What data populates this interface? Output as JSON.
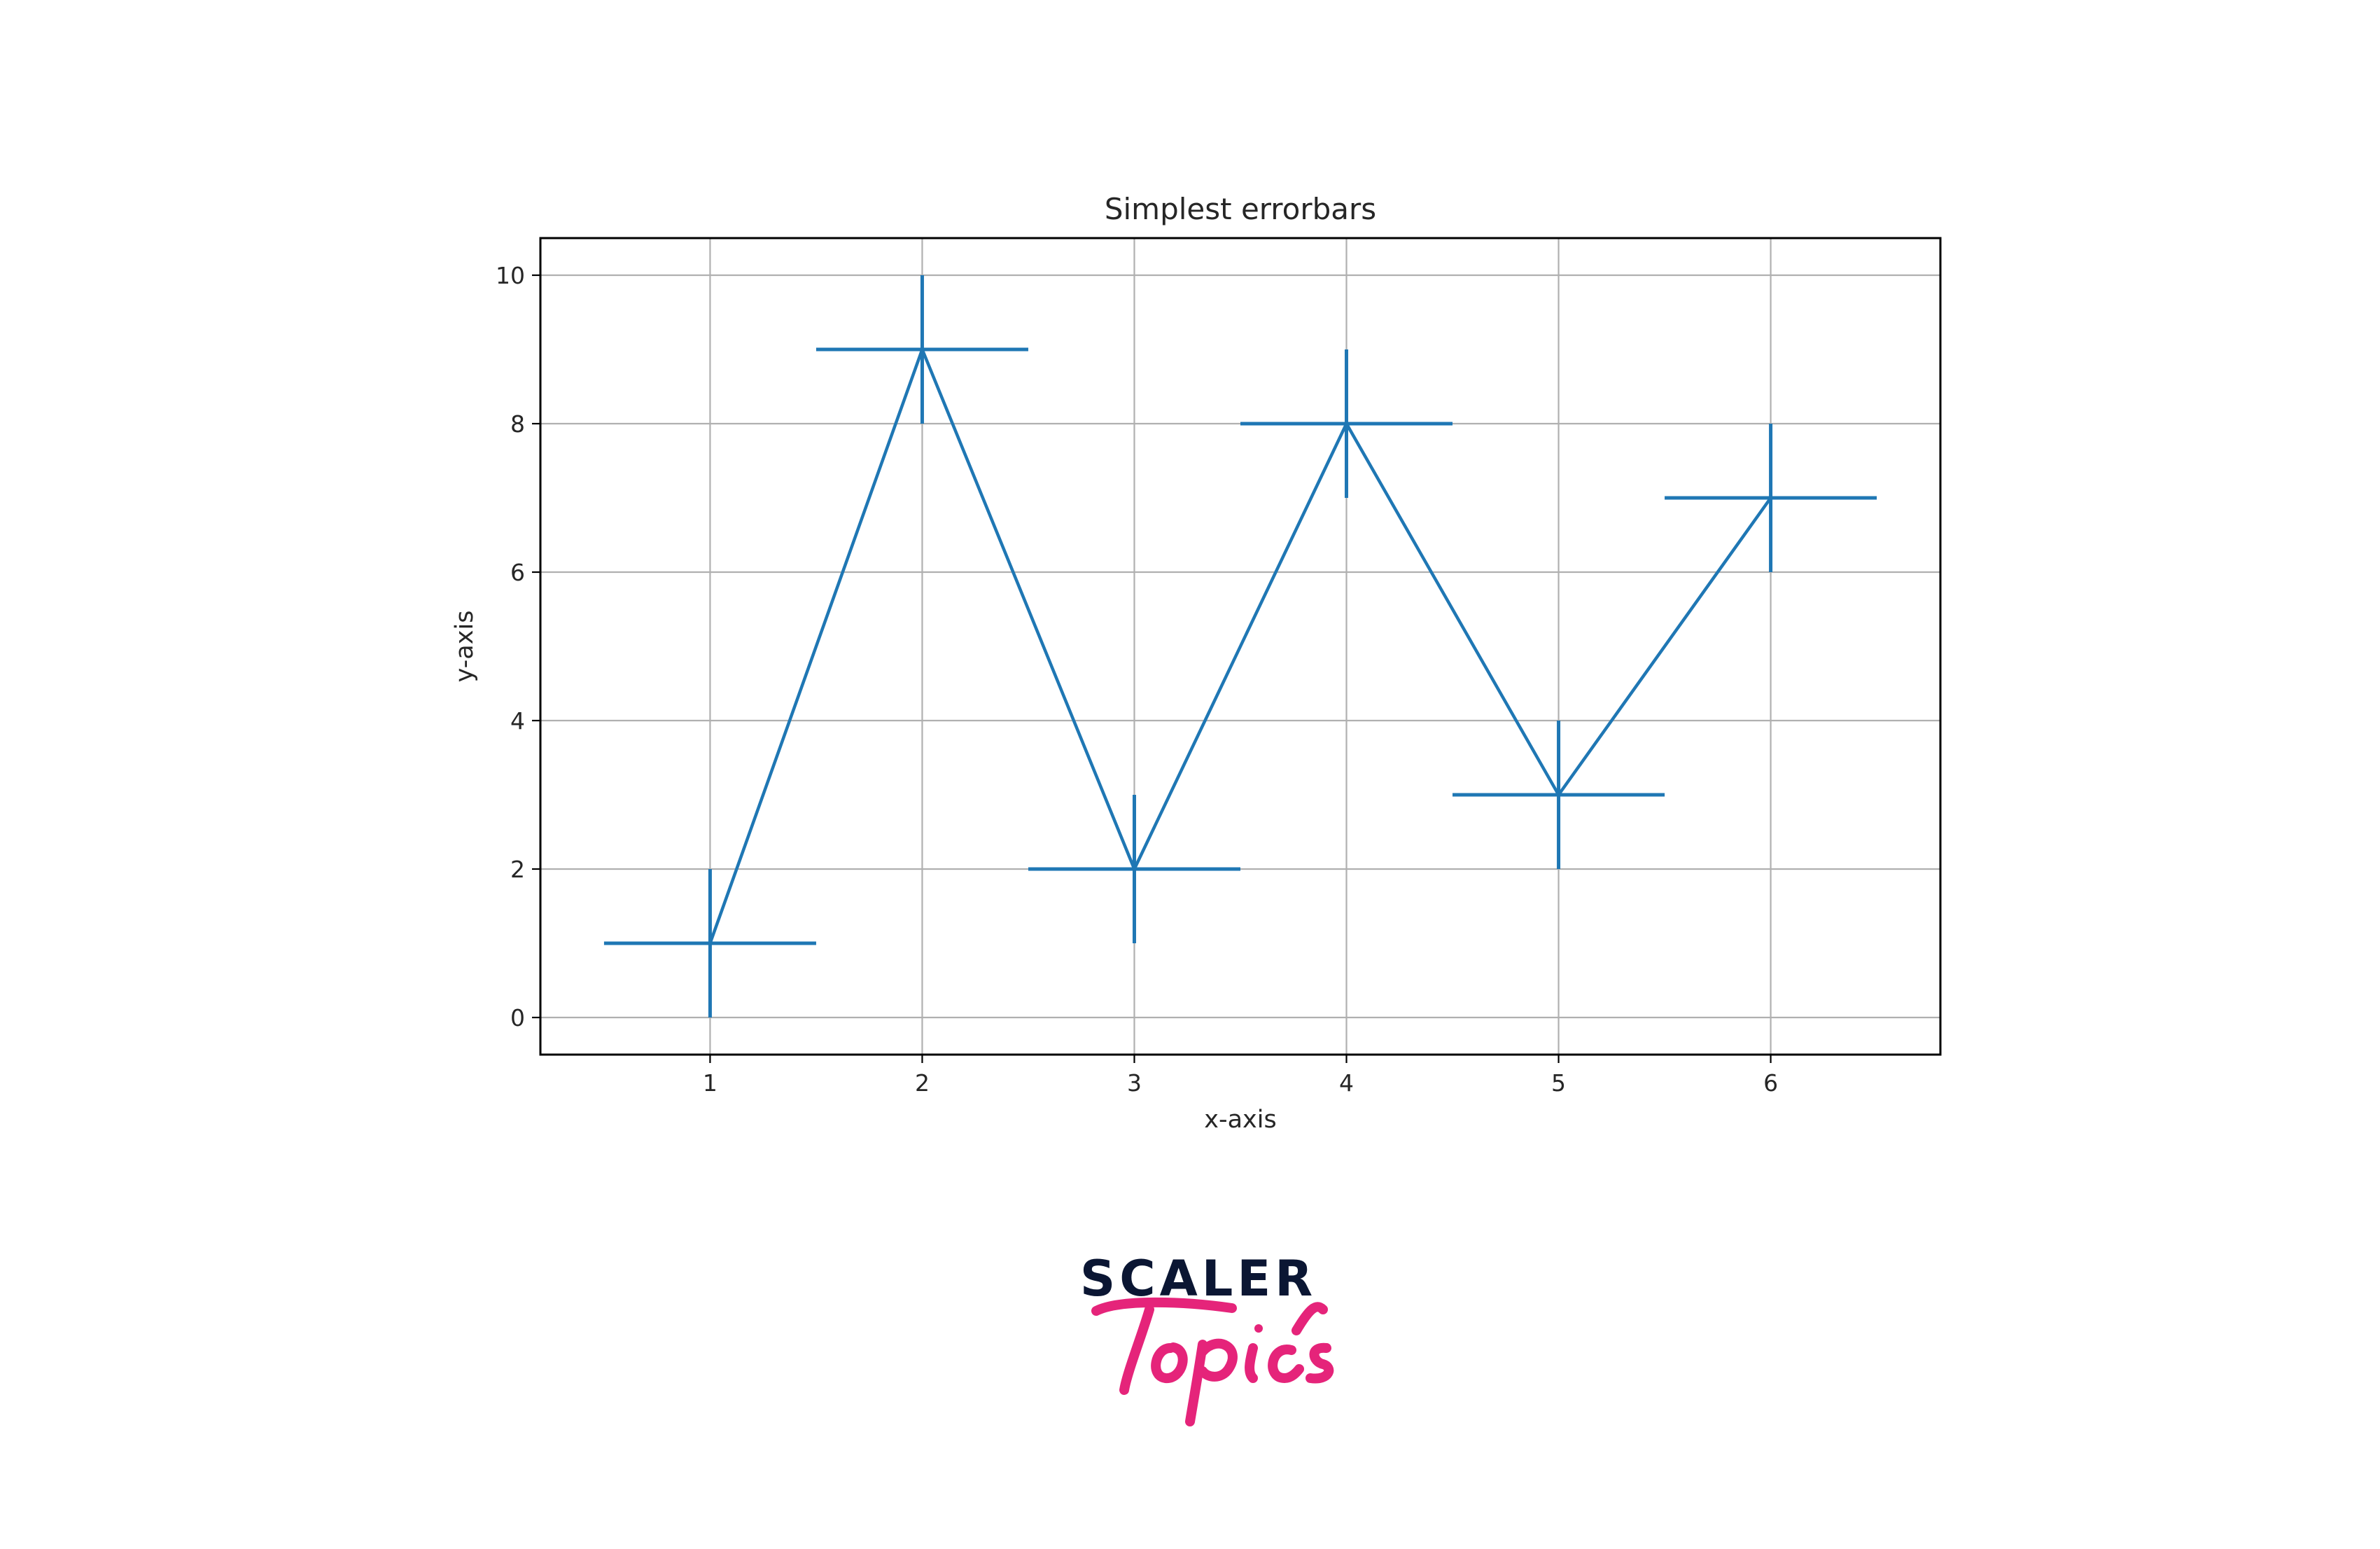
{
  "chart_data": {
    "type": "line",
    "title": "Simplest errorbars",
    "xlabel": "x-axis",
    "ylabel": "y-axis",
    "x": [
      1,
      2,
      3,
      4,
      5,
      6
    ],
    "series": [
      {
        "values": [
          1,
          9,
          2,
          8,
          3,
          7
        ],
        "xerr": 0.5,
        "yerr": 1,
        "color": "#1f77b4"
      }
    ],
    "xlim": [
      0.2,
      6.8
    ],
    "ylim": [
      -0.5,
      10.5
    ],
    "xticks": [
      "1",
      "2",
      "3",
      "4",
      "5",
      "6"
    ],
    "yticks": [
      "0",
      "2",
      "4",
      "6",
      "8",
      "10"
    ],
    "xtick_values": [
      1,
      2,
      3,
      4,
      5,
      6
    ],
    "ytick_values": [
      0,
      2,
      4,
      6,
      8,
      10
    ],
    "grid": true,
    "legend": "none"
  },
  "logo": {
    "line1": "SCALER",
    "line2": "Topics",
    "color_dark": "#0b1633",
    "color_accent": "#e5247a"
  }
}
